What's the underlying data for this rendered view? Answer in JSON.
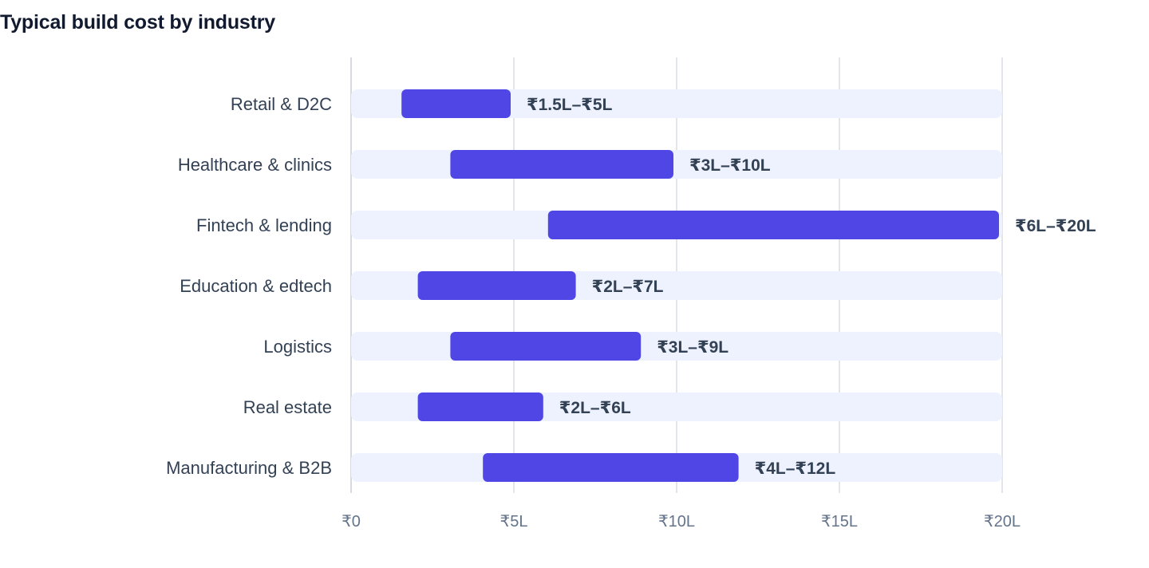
{
  "chart_data": {
    "type": "bar",
    "title": "Typical build cost by industry",
    "categories": [
      "Retail & D2C",
      "Healthcare & clinics",
      "Fintech & lending",
      "Education & edtech",
      "Logistics",
      "Real estate",
      "Manufacturing & B2B"
    ],
    "series": [
      {
        "values": [
          [
            1.5,
            5
          ],
          [
            3,
            10
          ],
          [
            6,
            20
          ],
          [
            2,
            7
          ],
          [
            3,
            9
          ],
          [
            2,
            6
          ],
          [
            4,
            12
          ]
        ]
      }
    ],
    "range_labels": [
      "₹1.5L–₹5L",
      "₹3L–₹10L",
      "₹6L–₹20L",
      "₹2L–₹7L",
      "₹3L–₹9L",
      "₹2L–₹6L",
      "₹4L–₹12L"
    ],
    "x_ticks": [
      0,
      5,
      10,
      15,
      20
    ],
    "x_tick_labels": [
      "₹0",
      "₹5L",
      "₹10L",
      "₹15L",
      "₹20L"
    ],
    "xlim": [
      0,
      20
    ],
    "xlabel": "",
    "ylabel": "",
    "orientation": "horizontal",
    "grid": true,
    "legend": "none",
    "colors": {
      "bar": "#4f46e5",
      "track": "#eef2ff",
      "grid": "#e2e5ea"
    }
  }
}
